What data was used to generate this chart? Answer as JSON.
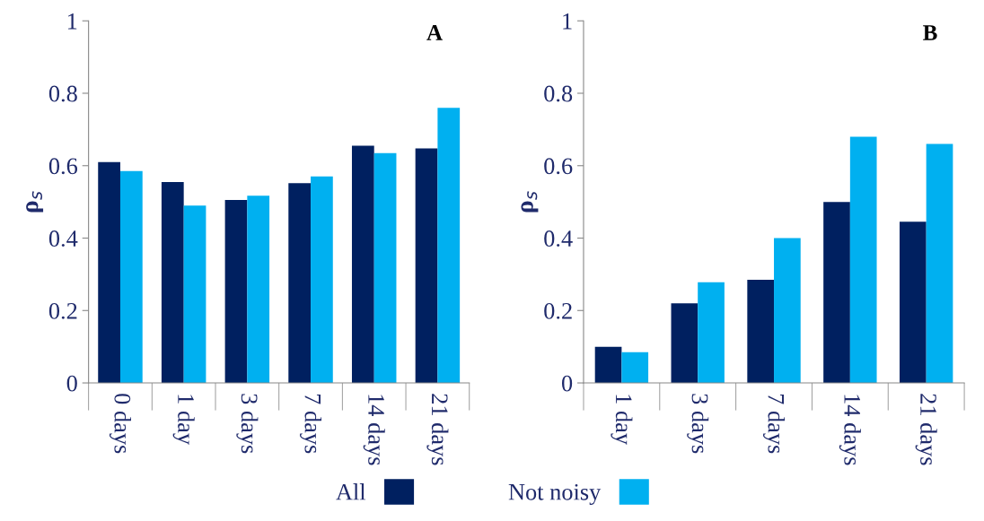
{
  "chart_data": [
    {
      "type": "bar",
      "title": "A",
      "ylabel": "ρ$_{s}$",
      "categories": [
        "0 days",
        "1 day",
        "3 days",
        "7 days",
        "14 days",
        "21 days"
      ],
      "series": [
        {
          "name": "All",
          "color": "#002060",
          "values": [
            0.61,
            0.555,
            0.505,
            0.552,
            0.655,
            0.648
          ]
        },
        {
          "name": "Not noisy",
          "color": "#00b0f0",
          "values": [
            0.585,
            0.49,
            0.517,
            0.57,
            0.635,
            0.76
          ]
        }
      ],
      "ylim": [
        0,
        1
      ],
      "yticks": [
        0,
        0.2,
        0.4,
        0.6,
        0.8,
        1
      ],
      "grid": false,
      "legend": "bottom"
    },
    {
      "type": "bar",
      "title": "B",
      "ylabel": "ρ$_{s}$",
      "categories": [
        "1 day",
        "3 days",
        "7 days",
        "14 days",
        "21 days"
      ],
      "series": [
        {
          "name": "All",
          "color": "#002060",
          "values": [
            0.1,
            0.22,
            0.285,
            0.5,
            0.445
          ]
        },
        {
          "name": "Not noisy",
          "color": "#00b0f0",
          "values": [
            0.085,
            0.278,
            0.4,
            0.68,
            0.66
          ]
        }
      ],
      "ylim": [
        0,
        1
      ],
      "yticks": [
        0,
        0.2,
        0.4,
        0.6,
        0.8,
        1
      ],
      "grid": false,
      "legend": "bottom"
    }
  ]
}
